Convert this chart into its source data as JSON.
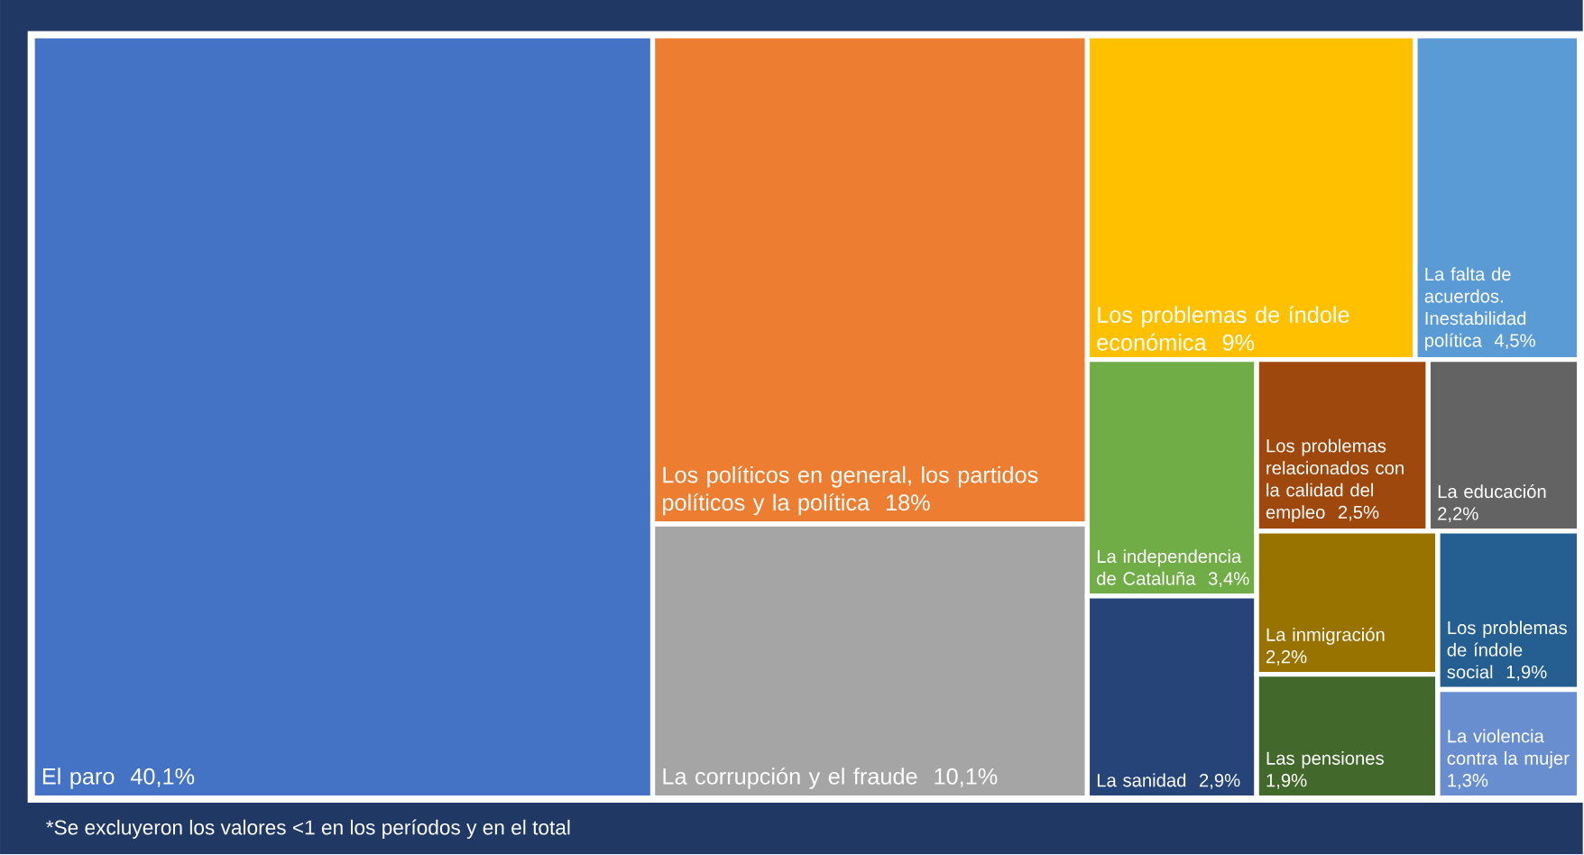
{
  "chart_data": {
    "type": "other",
    "categories": [
      "El paro",
      "Los políticos en general, los partidos políticos y la política",
      "La corrupción y el fraude",
      "Los problemas de índole económica",
      "La falta de acuerdos. Inestabilidad política",
      "La independencia de Cataluña",
      "La sanidad",
      "Los problemas relacionados con la calidad del empleo",
      "La educación",
      "La inmigración",
      "Las pensiones",
      "Los problemas de índole social",
      "La violencia contra la mujer"
    ],
    "values": [
      40.1,
      18,
      10.1,
      9,
      4.5,
      3.4,
      2.9,
      2.5,
      2.2,
      2.2,
      1.9,
      1.9,
      1.3
    ],
    "value_labels": [
      "40,1%",
      "18%",
      "10,1%",
      "9%",
      "4,5%",
      "3,4%",
      "2,9%",
      "2,5%",
      "2,2%",
      "2,2%",
      "1,9%",
      "1,9%",
      "1,3%"
    ],
    "colors": [
      "#4472c4",
      "#ed7d31",
      "#a5a5a5",
      "#ffc000",
      "#5b9bd5",
      "#70ad47",
      "#264478",
      "#9e480e",
      "#636363",
      "#997300",
      "#43682b",
      "#255e91",
      "#698ed0"
    ],
    "annotations": [
      "*Se excluyeron los valores <1 en los períodos y en el total"
    ]
  }
}
